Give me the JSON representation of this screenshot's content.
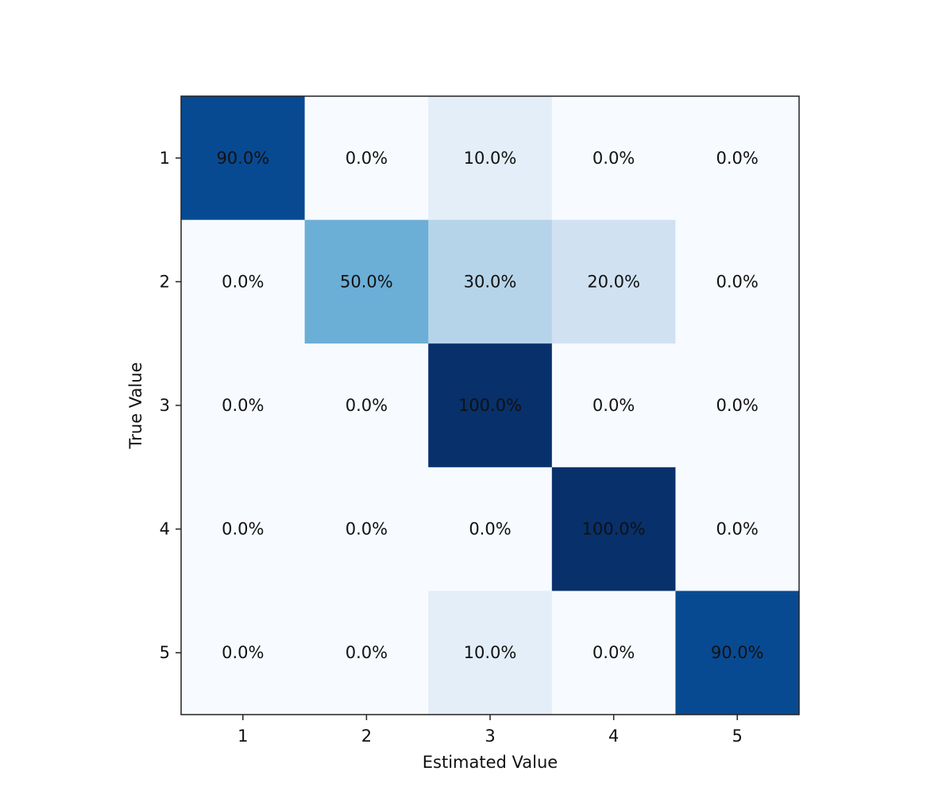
{
  "chart_data": {
    "type": "heatmap",
    "title": "",
    "xlabel": "Estimated Value",
    "ylabel": "True Value",
    "x_categories": [
      "1",
      "2",
      "3",
      "4",
      "5"
    ],
    "y_categories": [
      "1",
      "2",
      "3",
      "4",
      "5"
    ],
    "values": [
      [
        90.0,
        0.0,
        10.0,
        0.0,
        0.0
      ],
      [
        0.0,
        50.0,
        30.0,
        20.0,
        0.0
      ],
      [
        0.0,
        0.0,
        100.0,
        0.0,
        0.0
      ],
      [
        0.0,
        0.0,
        0.0,
        100.0,
        0.0
      ],
      [
        0.0,
        0.0,
        10.0,
        0.0,
        90.0
      ]
    ],
    "value_format": "percent_1dp",
    "colormap": "Blues",
    "vmin": 0,
    "vmax": 100,
    "grid": false,
    "colors": {
      "low": "#f7fbff",
      "high": "#08306b",
      "text": "#111111",
      "frame": "#222222"
    }
  }
}
